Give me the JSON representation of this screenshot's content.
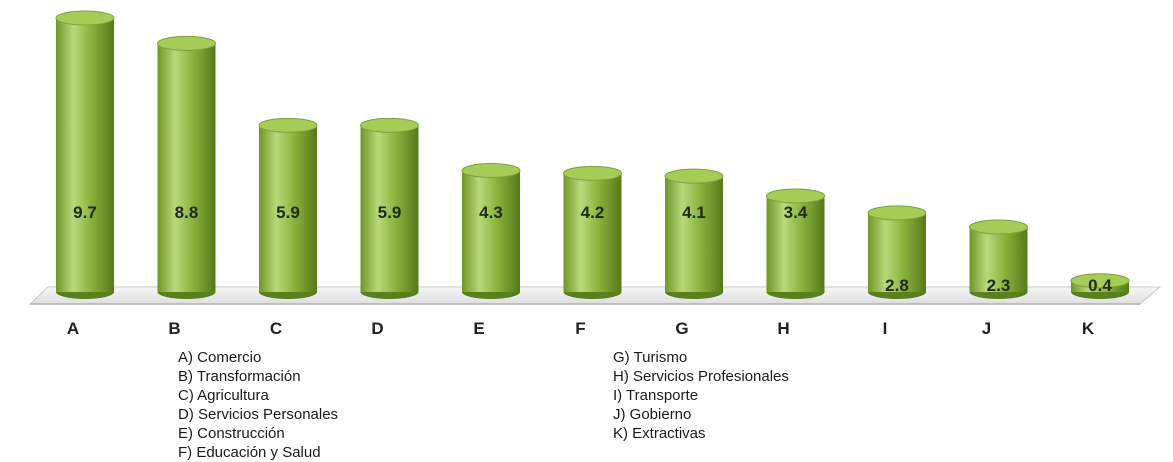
{
  "chart_data": {
    "type": "bar",
    "style": "3d-cylinder",
    "categories": [
      "A",
      "B",
      "C",
      "D",
      "E",
      "F",
      "G",
      "H",
      "I",
      "J",
      "K"
    ],
    "values": [
      9.7,
      8.8,
      5.9,
      5.9,
      4.3,
      4.2,
      4.1,
      3.4,
      2.8,
      2.3,
      0.4
    ],
    "data_labels": [
      "9.7",
      "8.8",
      "5.9",
      "5.9",
      "4.3",
      "4.2",
      "4.1",
      "3.4",
      "2.8",
      "2.3",
      "0.4"
    ],
    "ylim": [
      0,
      9.7
    ],
    "grid": false,
    "legend_placement": "bottom",
    "title": "",
    "xlabel": "",
    "ylabel": "",
    "colors": {
      "bar": "#8ab43c",
      "bar_dark": "#5a7f1f",
      "bar_light": "#b8d97a",
      "top": "#a5cc57",
      "floor": "#ededed",
      "floor_edge": "#c9c9c9"
    }
  },
  "legend": {
    "left": [
      "A) Comercio",
      "B) Transformación",
      "C) Agricultura",
      "D) Servicios Personales",
      "E) Construcción",
      "F) Educación y Salud"
    ],
    "right": [
      "G) Turismo",
      "H) Servicios Profesionales",
      "I) Transporte",
      "J) Gobierno",
      "K) Extractivas"
    ]
  }
}
